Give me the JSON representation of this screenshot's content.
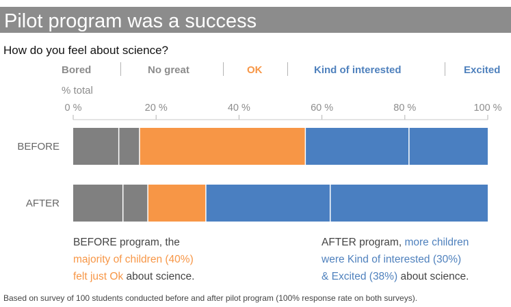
{
  "title": "Pilot program was a success",
  "question": "How do you feel about science?",
  "legend": [
    {
      "label": "Bored",
      "color": "#8c8c8c"
    },
    {
      "label": "No great",
      "color": "#8c8c8c"
    },
    {
      "label": "OK",
      "color": "#f79646"
    },
    {
      "label": "Kind of interested",
      "color": "#4f81bd"
    },
    {
      "label": "Excited",
      "color": "#4f81bd"
    }
  ],
  "unit_label": "% total",
  "colors": {
    "gray": "#808080",
    "orange": "#f79646",
    "blue": "#4a7fc1",
    "note_text": "#444444"
  },
  "chart_data": {
    "type": "bar",
    "orientation": "horizontal",
    "stacked": true,
    "normalized_percent": true,
    "categories": [
      "BEFORE",
      "AFTER"
    ],
    "series": [
      {
        "name": "Bored",
        "values": [
          11,
          12
        ],
        "color": "#808080"
      },
      {
        "name": "No great",
        "values": [
          5,
          6
        ],
        "color": "#808080"
      },
      {
        "name": "OK",
        "values": [
          40,
          14
        ],
        "color": "#f79646"
      },
      {
        "name": "Kind of interested",
        "values": [
          25,
          30
        ],
        "color": "#4a7fc1"
      },
      {
        "name": "Excited",
        "values": [
          19,
          38
        ],
        "color": "#4a7fc1"
      }
    ],
    "xlim": [
      0,
      100
    ],
    "x_ticks": [
      "0 %",
      "20 %",
      "40 %",
      "60 %",
      "80 %",
      "100 %"
    ],
    "x_tick_values": [
      0,
      20,
      40,
      60,
      80,
      100
    ],
    "grid": false,
    "legend_position": "top"
  },
  "notes": {
    "before": {
      "line1": "BEFORE program, the",
      "line2": "majority of children (40%)",
      "line3_highlight": "felt just Ok",
      "line3_rest": " about science."
    },
    "after": {
      "line1_plain": "AFTER program, ",
      "line1_highlight": "more children",
      "line2": "were Kind of interested (30%)",
      "line3_highlight": "& Excited (38%)",
      "line3_rest": " about science."
    }
  },
  "footer": "Based on survey of 100 students conducted before and after pilot program (100% response rate on both surveys)."
}
